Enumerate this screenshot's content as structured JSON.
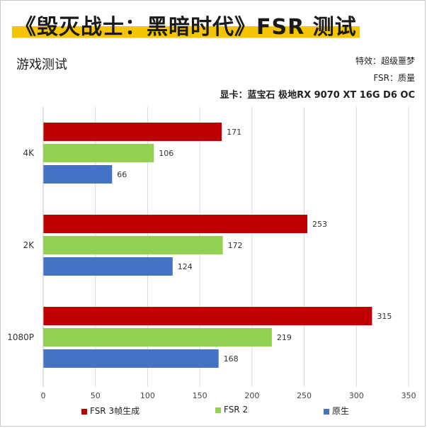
{
  "headline": "《毁灭战士：黑暗时代》FSR 测试",
  "subtitle": "游戏测试",
  "meta": {
    "line1": "特效：超级噩梦",
    "line2": "FSR：质量",
    "line3": "显卡：蓝宝石 极地RX 9070 XT 16G D6 OC"
  },
  "colors": {
    "headline_highlight": "#f4c400"
  },
  "chart_data": {
    "type": "bar",
    "orientation": "horizontal",
    "categories": [
      "4K",
      "2K",
      "1080P"
    ],
    "series": [
      {
        "name": "FSR 3帧生成",
        "color": "#c00000",
        "values": [
          171,
          253,
          315
        ]
      },
      {
        "name": "FSR 2",
        "color": "#92d050",
        "values": [
          106,
          172,
          219
        ]
      },
      {
        "name": "原生",
        "color": "#4472c4",
        "values": [
          66,
          124,
          168
        ]
      }
    ],
    "xlim": [
      0,
      350
    ],
    "xticks": [
      0,
      50,
      100,
      150,
      200,
      250,
      300,
      350
    ],
    "grid": true,
    "legend_position": "bottom",
    "data_labels": true
  }
}
